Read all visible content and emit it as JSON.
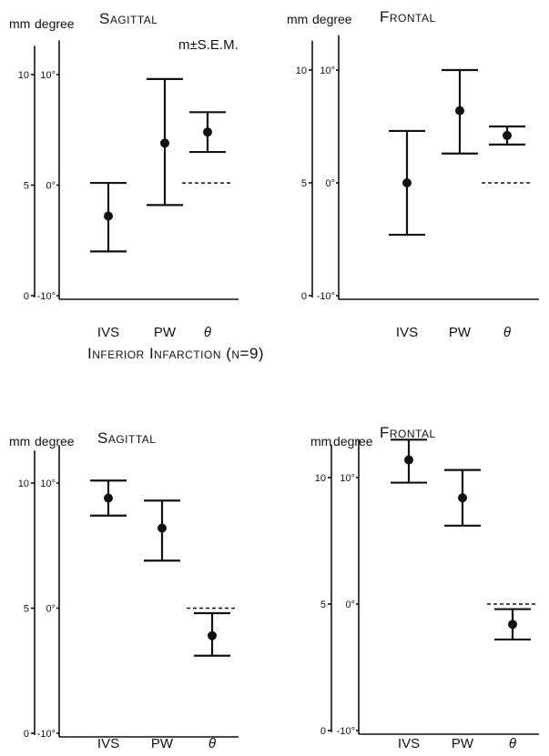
{
  "section_heading": "Inferior Infarction (n=9)",
  "annotation": "m±S.E.M.",
  "chart_data": [
    {
      "type": "errorbar",
      "title": "Sagittal",
      "unit_labels": [
        "mm",
        "degree"
      ],
      "mm_ticks": [
        "10",
        "5",
        "0"
      ],
      "degree_ticks": [
        "10°",
        "0°",
        "-10°"
      ],
      "categories": [
        "IVS",
        "PW",
        "θ"
      ],
      "ylim_mm": [
        0,
        11.3
      ],
      "series": [
        {
          "category": "IVS",
          "mean": 3.6,
          "low": 2.0,
          "high": 5.1
        },
        {
          "category": "PW",
          "mean": 6.9,
          "low": 4.1,
          "high": 9.8
        },
        {
          "category": "θ",
          "mean": 7.4,
          "low": 6.5,
          "high": 8.3
        }
      ],
      "reference_line_mm": 5.1
    },
    {
      "type": "errorbar",
      "title": "Frontal",
      "unit_labels": [
        "mm",
        "degree"
      ],
      "mm_ticks": [
        "10",
        "5",
        "0"
      ],
      "degree_ticks": [
        "10°",
        "0°",
        "-10°"
      ],
      "categories": [
        "IVS",
        "PW",
        "θ"
      ],
      "ylim_mm": [
        0,
        11.3
      ],
      "series": [
        {
          "category": "IVS",
          "mean": 5.0,
          "low": 2.7,
          "high": 7.3
        },
        {
          "category": "PW",
          "mean": 8.2,
          "low": 6.3,
          "high": 10.0
        },
        {
          "category": "θ",
          "mean": 7.1,
          "low": 6.7,
          "high": 7.5
        }
      ],
      "reference_line_mm": 5.0
    },
    {
      "type": "errorbar",
      "title": "Sagittal",
      "unit_labels": [
        "mm",
        "degree"
      ],
      "mm_ticks": [
        "10",
        "5",
        "0"
      ],
      "degree_ticks": [
        "10°",
        "0°",
        "-10°"
      ],
      "categories": [
        "IVS",
        "PW",
        "θ"
      ],
      "ylim_mm": [
        0,
        11.3
      ],
      "series": [
        {
          "category": "IVS",
          "mean": 9.4,
          "low": 8.7,
          "high": 10.1
        },
        {
          "category": "PW",
          "mean": 8.2,
          "low": 6.9,
          "high": 9.3
        },
        {
          "category": "θ",
          "mean": 3.9,
          "low": 3.1,
          "high": 4.8
        }
      ],
      "reference_line_mm": 5.0
    },
    {
      "type": "errorbar",
      "title": "Frontal",
      "unit_labels": [
        "mm",
        "degree"
      ],
      "mm_ticks": [
        "10",
        "5",
        "0"
      ],
      "degree_ticks": [
        "10°",
        "0°",
        "-10°"
      ],
      "categories": [
        "IVS",
        "PW",
        "θ"
      ],
      "ylim_mm": [
        0,
        11.3
      ],
      "series": [
        {
          "category": "IVS",
          "mean": 10.7,
          "low": 9.8,
          "high": 11.5
        },
        {
          "category": "PW",
          "mean": 9.2,
          "low": 8.1,
          "high": 10.3
        },
        {
          "category": "θ",
          "mean": 4.2,
          "low": 3.6,
          "high": 4.8
        }
      ],
      "reference_line_mm": 5.0
    }
  ]
}
